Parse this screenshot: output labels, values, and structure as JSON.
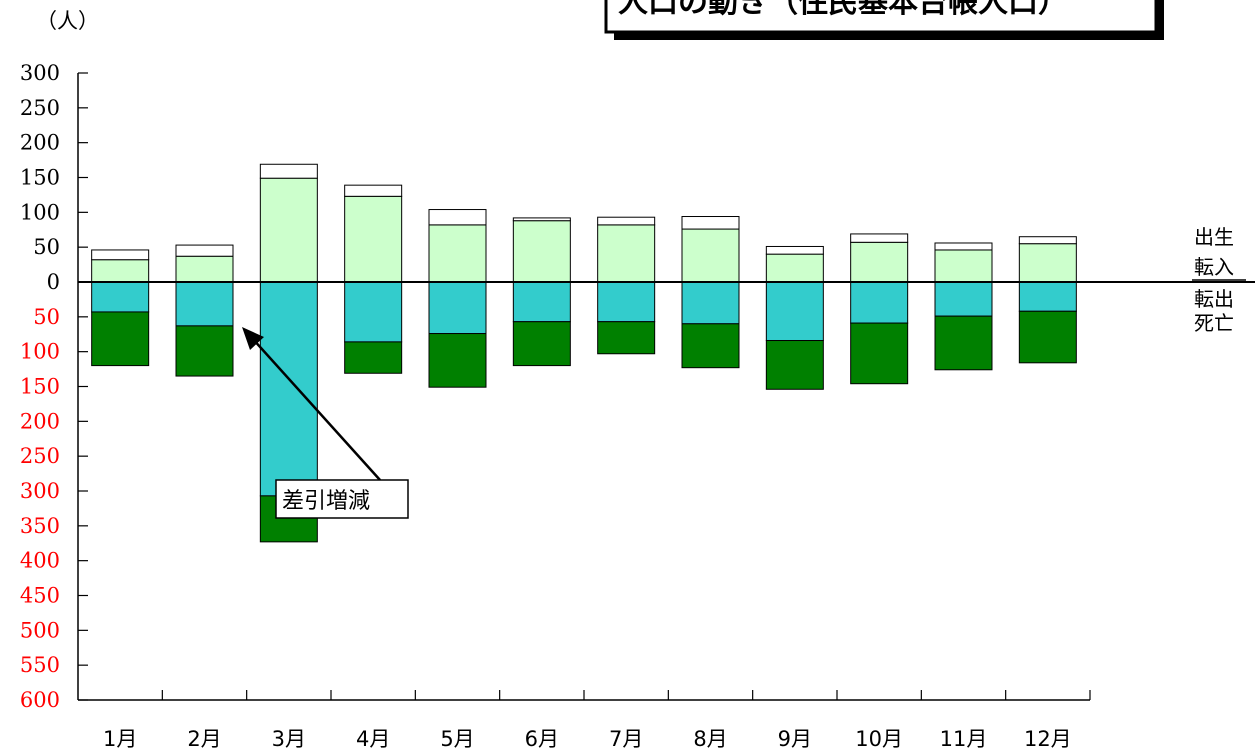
{
  "chart_data": {
    "type": "bar",
    "title": "人口の動き（住民基本台帳人口）",
    "unit_label": "（人）",
    "categories": [
      "1月",
      "2月",
      "3月",
      "4月",
      "5月",
      "6月",
      "7月",
      "8月",
      "9月",
      "10月",
      "11月",
      "12月"
    ],
    "series": [
      {
        "name": "転入",
        "direction": "up",
        "color": "#CCFFCC",
        "values": [
          32,
          37,
          149,
          123,
          82,
          88,
          82,
          76,
          40,
          57,
          46,
          55
        ]
      },
      {
        "name": "出生",
        "direction": "up",
        "color": "#FFFFFF",
        "values": [
          14,
          16,
          20,
          16,
          22,
          4,
          11,
          18,
          11,
          12,
          10,
          10
        ]
      },
      {
        "name": "転出",
        "direction": "down",
        "color": "#33CCCC",
        "values": [
          43,
          63,
          307,
          86,
          74,
          57,
          57,
          60,
          84,
          59,
          49,
          42
        ]
      },
      {
        "name": "死亡",
        "direction": "down",
        "color": "#008000",
        "values": [
          77,
          72,
          66,
          45,
          77,
          63,
          46,
          63,
          70,
          87,
          77,
          74
        ]
      }
    ],
    "legend": [
      {
        "label": "出生"
      },
      {
        "label": "転入"
      },
      {
        "label": "転出"
      },
      {
        "label": "死亡"
      }
    ],
    "y_ticks_positive": [
      "300",
      "250",
      "200",
      "150",
      "100",
      "50",
      "0"
    ],
    "y_ticks_negative": [
      "50",
      "100",
      "150",
      "200",
      "250",
      "300",
      "350",
      "400",
      "450",
      "500",
      "550",
      "600"
    ],
    "ylim": [
      -600,
      300
    ],
    "annotation": {
      "text": "差引増減",
      "target_category": "2月"
    },
    "colors": {
      "negative_tick": "#FF0000",
      "positive_tick": "#000000"
    }
  }
}
